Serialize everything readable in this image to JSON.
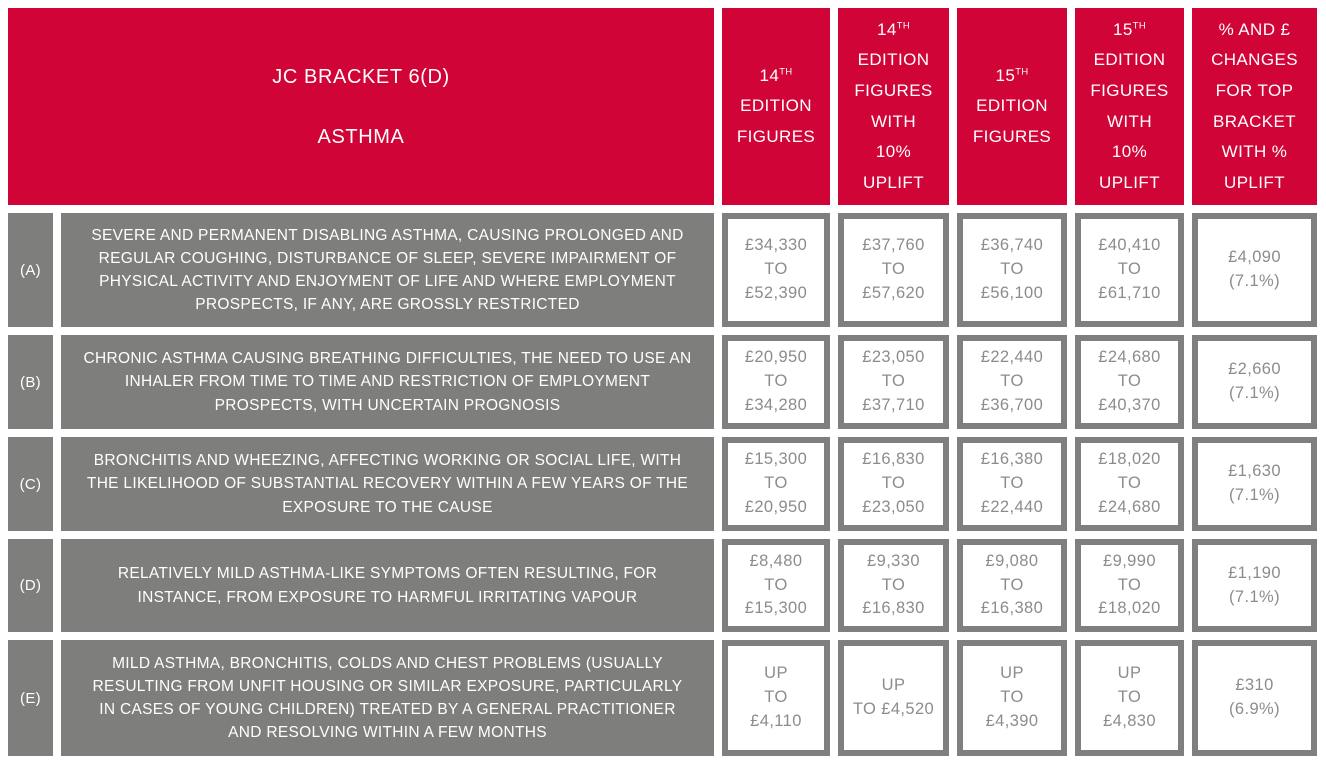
{
  "colors": {
    "header_red": "#D10438",
    "row_gray": "#7E7E7D",
    "value_text": "#8C8C8C",
    "cell_border": "#7F7F7F"
  },
  "table": {
    "title": "JC BRACKET 6(D)\n\nASTHMA",
    "columns": [
      {
        "lines": [
          "14^TH",
          "EDITION",
          "FIGURES"
        ]
      },
      {
        "lines": [
          "14^TH",
          "EDITION",
          "FIGURES",
          "WITH",
          "10%",
          "UPLIFT"
        ]
      },
      {
        "lines": [
          "15^TH",
          "EDITION",
          "FIGURES"
        ]
      },
      {
        "lines": [
          "15^TH",
          "EDITION",
          "FIGURES",
          "WITH",
          "10%",
          "UPLIFT"
        ]
      },
      {
        "lines": [
          "% AND £",
          "CHANGES",
          "FOR TOP",
          "BRACKET",
          "WITH %",
          "UPLIFT"
        ]
      }
    ],
    "rows": [
      {
        "label": "(A)",
        "description": "SEVERE AND PERMANENT DISABLING ASTHMA, CAUSING PROLONGED AND REGULAR COUGHING, DISTURBANCE OF SLEEP, SEVERE IMPAIRMENT OF PHYSICAL ACTIVITY AND ENJOYMENT OF LIFE AND WHERE EMPLOYMENT PROSPECTS, IF ANY, ARE GROSSLY RESTRICTED",
        "values": [
          "£34,330\nTO\n£52,390",
          "£37,760\nTO\n£57,620",
          "£36,740\nTO\n£56,100",
          "£40,410\nTO\n£61,710",
          "£4,090\n(7.1%)"
        ]
      },
      {
        "label": "(B)",
        "description": "CHRONIC ASTHMA CAUSING BREATHING DIFFICULTIES, THE NEED TO USE AN INHALER FROM TIME TO TIME AND RESTRICTION OF EMPLOYMENT PROSPECTS, WITH UNCERTAIN PROGNOSIS",
        "values": [
          "£20,950\nTO\n£34,280",
          "£23,050\nTO\n£37,710",
          "£22,440\nTO\n£36,700",
          "£24,680\nTO\n£40,370",
          "£2,660\n(7.1%)"
        ]
      },
      {
        "label": "(C)",
        "description": "BRONCHITIS AND WHEEZING, AFFECTING WORKING OR SOCIAL LIFE, WITH THE LIKELIHOOD OF SUBSTANTIAL RECOVERY WITHIN A FEW YEARS OF THE EXPOSURE TO THE CAUSE",
        "values": [
          "£15,300\nTO\n£20,950",
          "£16,830\nTO\n£23,050",
          "£16,380\nTO\n£22,440",
          "£18,020\nTO\n£24,680",
          "£1,630\n(7.1%)"
        ]
      },
      {
        "label": "(D)",
        "description": "RELATIVELY MILD ASTHMA-LIKE SYMPTOMS OFTEN RESULTING, FOR INSTANCE, FROM EXPOSURE TO HARMFUL IRRITATING VAPOUR",
        "values": [
          "£8,480\nTO\n£15,300",
          "£9,330\nTO\n£16,830",
          "£9,080\nTO\n£16,380",
          "£9,990\nTO\n£18,020",
          "£1,190\n(7.1%)"
        ]
      },
      {
        "label": "(E)",
        "description": "MILD ASTHMA, BRONCHITIS, COLDS AND CHEST PROBLEMS (USUALLY RESULTING FROM UNFIT HOUSING OR SIMILAR EXPOSURE, PARTICULARLY IN CASES OF YOUNG CHILDREN) TREATED BY A GENERAL PRACTITIONER AND RESOLVING WITHIN A FEW MONTHS",
        "values": [
          "UP\nTO\n£4,110",
          "UP\nTO £4,520",
          "UP\nTO\n£4,390",
          "UP\nTO\n£4,830",
          "£310\n(6.9%)"
        ]
      }
    ]
  }
}
